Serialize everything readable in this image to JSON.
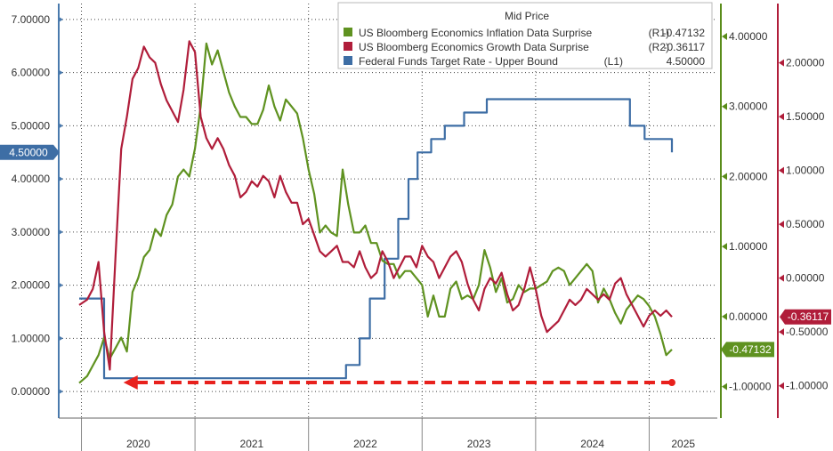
{
  "chart_data": {
    "type": "line",
    "legend_title": "Mid Price",
    "legend_position": "top-right",
    "grid": true,
    "x_axis": {
      "labels": [
        "2020",
        "2021",
        "2022",
        "2023",
        "2024",
        "2025"
      ],
      "range": [
        2019.8,
        2025.6
      ]
    },
    "axes": {
      "L1": {
        "side": "left",
        "range": [
          -0.5,
          7.3
        ],
        "ticks": [
          "0.00000",
          "1.00000",
          "2.00000",
          "3.00000",
          "4.00000",
          "5.00000",
          "6.00000",
          "7.00000"
        ],
        "tick_values": [
          0,
          1,
          2,
          3,
          4,
          5,
          6,
          7
        ],
        "color": "#4a7aad"
      },
      "R1": {
        "side": "right",
        "range": [
          -1.45,
          4.47
        ],
        "ticks": [
          "-1.00000",
          "0.00000",
          "1.00000",
          "2.00000",
          "3.00000",
          "4.00000"
        ],
        "tick_values": [
          -1,
          0,
          1,
          2,
          3,
          4
        ],
        "color": "#5a8c1a"
      },
      "R2": {
        "side": "right",
        "range": [
          -1.3,
          2.55
        ],
        "ticks": [
          "-1.00000",
          "-0.50000",
          "0.00000",
          "0.50000",
          "1.00000",
          "1.50000",
          "2.00000"
        ],
        "tick_values": [
          -1,
          -0.5,
          0,
          0.5,
          1,
          1.5,
          2
        ],
        "color": "#b01d3a"
      }
    },
    "series": [
      {
        "name": "US Bloomberg Economics Inflation Data Surprise",
        "axis_label": "(R1)",
        "last_value": "-0.47132",
        "axis": "R1",
        "color": "#5f9220",
        "x": [
          2019.98,
          2020.05,
          2020.1,
          2020.15,
          2020.2,
          2020.25,
          2020.3,
          2020.35,
          2020.4,
          2020.45,
          2020.5,
          2020.55,
          2020.6,
          2020.65,
          2020.7,
          2020.75,
          2020.8,
          2020.85,
          2020.9,
          2020.95,
          2021.0,
          2021.05,
          2021.1,
          2021.15,
          2021.2,
          2021.25,
          2021.3,
          2021.35,
          2021.4,
          2021.45,
          2021.5,
          2021.55,
          2021.6,
          2021.65,
          2021.7,
          2021.75,
          2021.8,
          2021.85,
          2021.9,
          2021.95,
          2022.0,
          2022.05,
          2022.1,
          2022.15,
          2022.2,
          2022.25,
          2022.3,
          2022.35,
          2022.4,
          2022.45,
          2022.5,
          2022.55,
          2022.6,
          2022.65,
          2022.7,
          2022.75,
          2022.8,
          2022.85,
          2022.9,
          2022.95,
          2023.0,
          2023.05,
          2023.1,
          2023.15,
          2023.2,
          2023.25,
          2023.3,
          2023.35,
          2023.4,
          2023.45,
          2023.5,
          2023.55,
          2023.6,
          2023.65,
          2023.7,
          2023.75,
          2023.8,
          2023.85,
          2023.9,
          2023.95,
          2024.0,
          2024.05,
          2024.1,
          2024.15,
          2024.2,
          2024.25,
          2024.3,
          2024.35,
          2024.4,
          2024.45,
          2024.5,
          2024.55,
          2024.6,
          2024.65,
          2024.7,
          2024.75,
          2024.8,
          2024.85,
          2024.9,
          2024.95,
          2025.0,
          2025.05,
          2025.1,
          2025.15,
          2025.2
        ],
        "y": [
          -0.95,
          -0.85,
          -0.7,
          -0.55,
          -0.3,
          -0.6,
          -0.45,
          -0.3,
          -0.5,
          0.35,
          0.55,
          0.85,
          0.95,
          1.25,
          1.15,
          1.45,
          1.6,
          2.0,
          2.1,
          2.0,
          2.4,
          3.0,
          3.9,
          3.6,
          3.8,
          3.5,
          3.2,
          3.0,
          2.85,
          2.85,
          2.75,
          2.75,
          2.95,
          3.3,
          3.0,
          2.8,
          3.1,
          3.0,
          2.9,
          2.55,
          2.1,
          1.75,
          1.2,
          1.3,
          1.2,
          1.15,
          2.1,
          1.6,
          1.2,
          1.2,
          1.3,
          1.05,
          1.05,
          0.8,
          0.75,
          0.75,
          0.55,
          0.65,
          0.65,
          0.55,
          0.45,
          0.0,
          0.3,
          0.0,
          0.0,
          0.4,
          0.5,
          0.25,
          0.3,
          0.25,
          0.45,
          0.95,
          0.7,
          0.35,
          0.55,
          0.2,
          0.25,
          0.45,
          0.35,
          0.4,
          0.4,
          0.45,
          0.5,
          0.65,
          0.7,
          0.65,
          0.45,
          0.55,
          0.65,
          0.75,
          0.65,
          0.2,
          0.4,
          0.25,
          0.05,
          -0.1,
          0.1,
          0.2,
          0.3,
          0.25,
          0.15,
          0.0,
          -0.25,
          -0.55,
          -0.47
        ]
      },
      {
        "name": "US Bloomberg Economics Growth Data Surprise",
        "axis_label": "(R2)",
        "last_value": "-0.36117",
        "axis": "R2",
        "color": "#b01d3a",
        "x": [
          2019.98,
          2020.05,
          2020.1,
          2020.15,
          2020.2,
          2020.25,
          2020.3,
          2020.35,
          2020.4,
          2020.45,
          2020.5,
          2020.55,
          2020.6,
          2020.65,
          2020.7,
          2020.75,
          2020.8,
          2020.85,
          2020.9,
          2020.95,
          2021.0,
          2021.05,
          2021.1,
          2021.15,
          2021.2,
          2021.25,
          2021.3,
          2021.35,
          2021.4,
          2021.45,
          2021.5,
          2021.55,
          2021.6,
          2021.65,
          2021.7,
          2021.75,
          2021.8,
          2021.85,
          2021.9,
          2021.95,
          2022.0,
          2022.05,
          2022.1,
          2022.15,
          2022.2,
          2022.25,
          2022.3,
          2022.35,
          2022.4,
          2022.45,
          2022.5,
          2022.55,
          2022.6,
          2022.65,
          2022.7,
          2022.75,
          2022.8,
          2022.85,
          2022.9,
          2022.95,
          2023.0,
          2023.05,
          2023.1,
          2023.15,
          2023.2,
          2023.25,
          2023.3,
          2023.35,
          2023.4,
          2023.45,
          2023.5,
          2023.55,
          2023.6,
          2023.65,
          2023.7,
          2023.75,
          2023.8,
          2023.85,
          2023.9,
          2023.95,
          2024.0,
          2024.05,
          2024.1,
          2024.15,
          2024.2,
          2024.25,
          2024.3,
          2024.35,
          2024.4,
          2024.45,
          2024.5,
          2024.55,
          2024.6,
          2024.65,
          2024.7,
          2024.75,
          2024.8,
          2024.85,
          2024.9,
          2024.95,
          2025.0,
          2025.05,
          2025.1,
          2025.15,
          2025.2
        ],
        "y": [
          -0.25,
          -0.2,
          -0.1,
          0.15,
          -0.5,
          -0.85,
          0.2,
          1.2,
          1.5,
          1.85,
          1.95,
          2.15,
          2.05,
          2.0,
          1.8,
          1.65,
          1.55,
          1.45,
          1.75,
          2.2,
          2.1,
          1.5,
          1.3,
          1.2,
          1.3,
          1.2,
          1.05,
          0.95,
          0.75,
          0.8,
          0.9,
          0.85,
          0.95,
          0.9,
          0.75,
          0.95,
          0.8,
          0.7,
          0.7,
          0.5,
          0.55,
          0.4,
          0.25,
          0.2,
          0.25,
          0.3,
          0.15,
          0.15,
          0.1,
          0.25,
          0.1,
          0.0,
          0.05,
          0.25,
          0.15,
          0.0,
          0.1,
          0.2,
          0.2,
          0.1,
          0.3,
          0.2,
          0.15,
          0.0,
          0.1,
          0.2,
          0.25,
          0.15,
          -0.05,
          -0.2,
          -0.3,
          -0.1,
          0.0,
          -0.05,
          0.05,
          -0.15,
          -0.3,
          -0.25,
          -0.1,
          0.1,
          -0.1,
          -0.35,
          -0.5,
          -0.45,
          -0.4,
          -0.3,
          -0.2,
          -0.25,
          -0.2,
          -0.1,
          -0.15,
          -0.2,
          -0.15,
          -0.2,
          -0.05,
          0.0,
          -0.15,
          -0.25,
          -0.35,
          -0.45,
          -0.35,
          -0.3,
          -0.35,
          -0.3,
          -0.36
        ]
      },
      {
        "name": "Federal Funds Target Rate - Upper Bound",
        "axis_label": "(L1)",
        "last_value": "4.50000",
        "axis": "L1",
        "color": "#3e6ea5",
        "step": true,
        "x": [
          2019.98,
          2020.17,
          2020.2,
          2022.2,
          2022.33,
          2022.45,
          2022.54,
          2022.67,
          2022.79,
          2022.88,
          2022.96,
          2023.08,
          2023.2,
          2023.37,
          2023.57,
          2024.72,
          2024.83,
          2024.96,
          2025.2
        ],
        "y": [
          1.75,
          1.75,
          0.25,
          0.25,
          0.5,
          1.0,
          1.75,
          2.5,
          3.25,
          4.0,
          4.5,
          4.75,
          5.0,
          5.25,
          5.5,
          5.5,
          5.0,
          4.75,
          4.5
        ]
      }
    ],
    "annotations": [
      {
        "type": "dashed-arrow",
        "color": "#e8211d",
        "from": {
          "x": 2025.2,
          "y": -0.97
        },
        "to": {
          "x": 2020.37,
          "y": -0.97
        },
        "axis": "R2"
      }
    ],
    "last_value_tags": [
      {
        "series": 2,
        "axis": "L1",
        "text": "4.50000",
        "side": "left",
        "color": "#3e6ea5"
      },
      {
        "series": 1,
        "axis": "R2",
        "text": "-0.36117",
        "side": "right",
        "color": "#b01d3a"
      },
      {
        "series": 0,
        "axis": "R1",
        "text": "-0.47132",
        "side": "right",
        "color": "#5f9220"
      }
    ]
  }
}
